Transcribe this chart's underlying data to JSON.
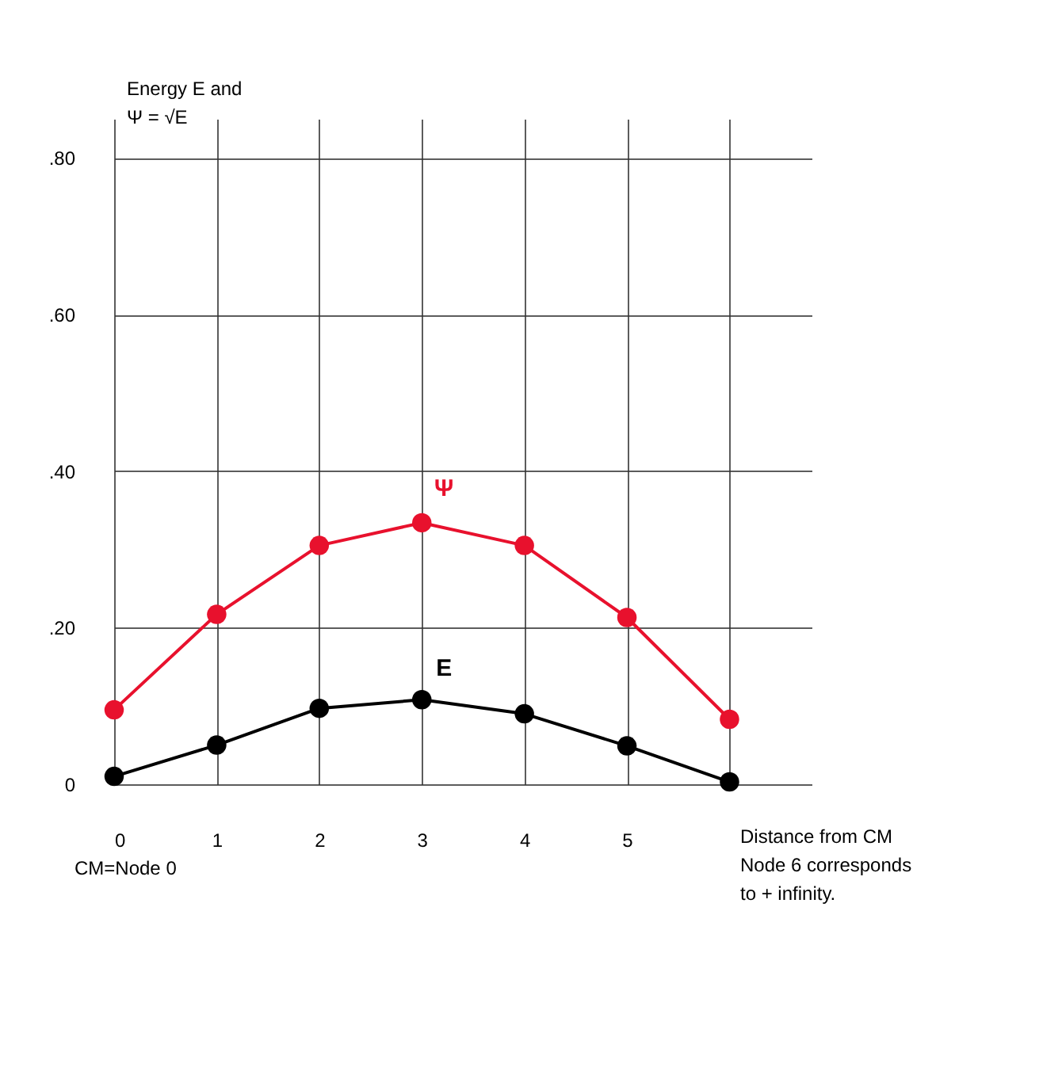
{
  "chart_data": {
    "type": "line",
    "ylabel": "Energy E and\nΨ = √E",
    "xlabel": "Distance from CM\nNode 6 corresponds\nto + infinity.",
    "annotations": [
      "CM=Node 0"
    ],
    "x": [
      0,
      1,
      2,
      3,
      4,
      5,
      6
    ],
    "series": [
      {
        "name": "Ψ",
        "color": "#e8112d",
        "values": [
          0.095,
          0.217,
          0.305,
          0.334,
          0.305,
          0.213,
          0.083
        ]
      },
      {
        "name": "E",
        "color": "#000000",
        "values": [
          0.01,
          0.05,
          0.097,
          0.108,
          0.09,
          0.049,
          0.003
        ]
      }
    ],
    "xlim": [
      0,
      6.8
    ],
    "xticks": [
      0,
      1,
      2,
      3,
      4,
      5,
      {
        "value": 6,
        "label": null
      }
    ],
    "ylim": [
      0,
      0.85
    ],
    "yticks": [
      {
        "value": 0,
        "label": "0"
      },
      {
        "value": 0.2,
        "label": ".20"
      },
      {
        "value": 0.4,
        "label": ".40"
      },
      {
        "value": 0.6,
        "label": ".60"
      },
      {
        "value": 0.8,
        "label": ".80"
      }
    ],
    "grid": true,
    "marker": "circle",
    "line_style": "solid"
  }
}
